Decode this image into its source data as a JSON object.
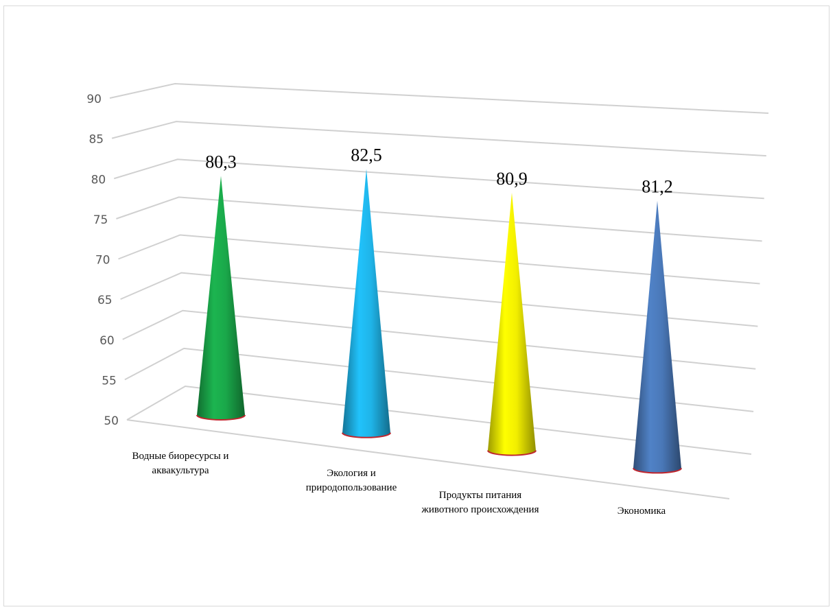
{
  "chart_data": {
    "type": "cone3d",
    "categories": [
      "Водные биоресурсы и аквакультура",
      "Экология и природопользование",
      "Продукты питания животного происхождения",
      "Экономика"
    ],
    "values": [
      80.3,
      82.5,
      80.9,
      81.2
    ],
    "value_labels": [
      "80,3",
      "82,5",
      "80,9",
      "81,2"
    ],
    "colors": [
      "#1aa84a",
      "#1fb4e8",
      "#f2ee00",
      "#4a78b8"
    ],
    "ylim": [
      50,
      90
    ],
    "yticks": [
      50,
      55,
      60,
      65,
      70,
      75,
      80,
      85,
      90
    ],
    "grid": true
  }
}
